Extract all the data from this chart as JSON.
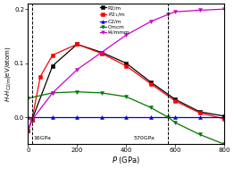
{
  "xlabel": "P (GPa)",
  "ylabel": "H-HC2/m(eV/atom)",
  "xlim": [
    0,
    800
  ],
  "ylim": [
    -0.05,
    0.21
  ],
  "yticks": [
    0.0,
    0.1,
    0.2
  ],
  "xticks": [
    0,
    200,
    400,
    600,
    800
  ],
  "p2m": {
    "label": "P2/m",
    "color": "#000000",
    "marker": "s",
    "x": [
      0,
      16,
      100,
      200,
      300,
      400,
      500,
      600,
      700,
      800
    ],
    "y": [
      -0.025,
      -0.005,
      0.095,
      0.135,
      0.12,
      0.1,
      0.065,
      0.033,
      0.01,
      0.002
    ]
  },
  "p21m": {
    "color": "#ff0000",
    "marker": "s",
    "x": [
      0,
      16,
      50,
      100,
      200,
      300,
      400,
      500,
      600,
      700,
      800
    ],
    "y": [
      -0.025,
      -0.005,
      0.075,
      0.115,
      0.135,
      0.118,
      0.095,
      0.062,
      0.03,
      0.008,
      -0.003
    ]
  },
  "c2m": {
    "label": "C2/m",
    "color": "#0000dd",
    "marker": "^",
    "x": [
      0,
      100,
      200,
      300,
      400,
      500,
      600,
      700,
      800
    ],
    "y": [
      0.0,
      0.0,
      0.0,
      0.0,
      0.0,
      0.0,
      0.0,
      0.0,
      0.0
    ]
  },
  "cmcm": {
    "label": "Cmcm",
    "color": "#007700",
    "marker": "v",
    "x": [
      0,
      100,
      200,
      300,
      400,
      500,
      570,
      600,
      700,
      800
    ],
    "y": [
      0.035,
      0.045,
      0.047,
      0.045,
      0.038,
      0.018,
      0.0,
      -0.01,
      -0.032,
      -0.05
    ]
  },
  "i4mmm": {
    "label": "I4/mmm",
    "color": "#cc00cc",
    "marker": "v",
    "x": [
      0,
      16,
      100,
      200,
      300,
      400,
      500,
      570,
      600,
      700,
      800
    ],
    "y": [
      -0.025,
      -0.005,
      0.045,
      0.088,
      0.12,
      0.152,
      0.177,
      0.19,
      0.195,
      0.198,
      0.2
    ]
  },
  "bg_color": "#ffffff",
  "vline_color": "#000000",
  "ann16": "16GPa",
  "ann570": "570GPa"
}
